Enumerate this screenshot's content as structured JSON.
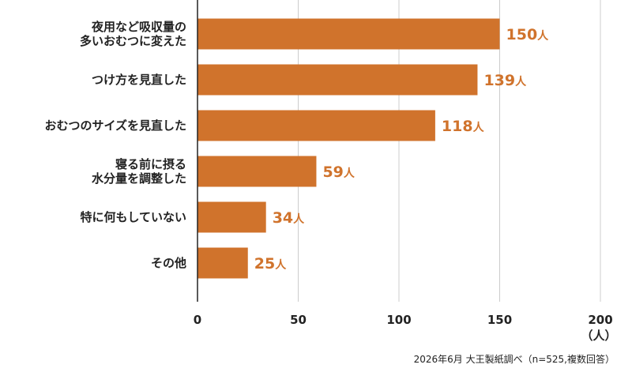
{
  "chart_data": {
    "type": "bar",
    "orientation": "horizontal",
    "categories": [
      [
        "夜用など吸収量の",
        "多いおむつに変えた"
      ],
      [
        "つけ方を見直した"
      ],
      [
        "おむつのサイズを見直した"
      ],
      [
        "寝る前に摂る",
        "水分量を調整した"
      ],
      [
        "特に何もしていない"
      ],
      [
        "その他"
      ]
    ],
    "values": [
      150,
      139,
      118,
      59,
      34,
      25
    ],
    "value_unit": "人",
    "xlim": [
      0,
      200
    ],
    "xticks": [
      0,
      50,
      100,
      150,
      200
    ],
    "x_unit_label": "（人）",
    "grid": true,
    "bar_color": "#d0732c",
    "label_color": "#d0732c",
    "grid_color": "#cccccc",
    "source": "2026年6月 大王製紙調べ（n=525,複数回答）"
  }
}
